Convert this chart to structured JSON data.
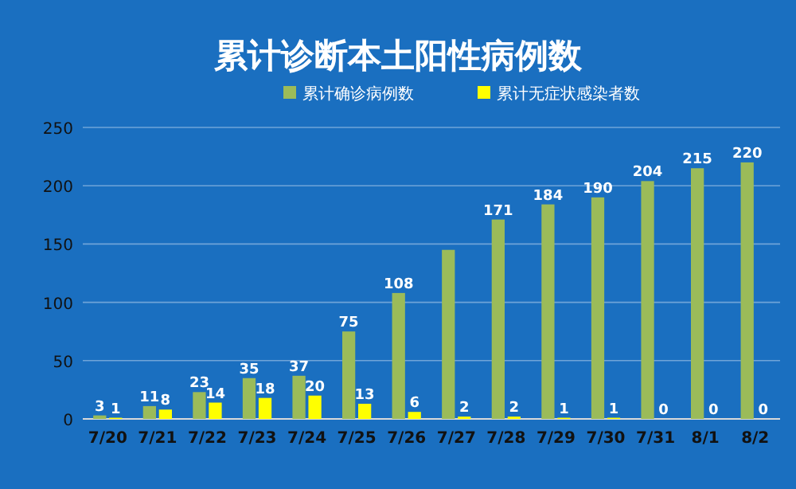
{
  "chart_data": {
    "type": "bar",
    "title": "累计诊断本土阳性病例数",
    "categories": [
      "7/20",
      "7/21",
      "7/22",
      "7/23",
      "7/24",
      "7/25",
      "7/26",
      "7/27",
      "7/28",
      "7/29",
      "7/30",
      "7/31",
      "8/1",
      "8/2"
    ],
    "series": [
      {
        "name": "累计确诊病例数",
        "color": "#9bbb59",
        "values": [
          3,
          11,
          23,
          35,
          37,
          75,
          108,
          145,
          171,
          184,
          190,
          204,
          215,
          220
        ],
        "value_labels": [
          "3",
          "11",
          "23",
          "35",
          "37",
          "75",
          "108",
          null,
          "171",
          "184",
          "190",
          "204",
          "215",
          "220"
        ]
      },
      {
        "name": "累计无症状感染者数",
        "color": "#ffff00",
        "values": [
          1,
          8,
          14,
          18,
          20,
          13,
          6,
          2,
          2,
          1,
          1,
          0,
          0,
          0
        ],
        "value_labels": [
          "1",
          "8",
          "14",
          "18",
          "20",
          "13",
          "6",
          "2",
          "2",
          "1",
          "1",
          "0",
          "0",
          "0"
        ]
      }
    ],
    "ylim": [
      0,
      250
    ],
    "yticks": [
      0,
      50,
      100,
      150,
      200,
      250
    ],
    "grid": "y",
    "legend": "top"
  }
}
